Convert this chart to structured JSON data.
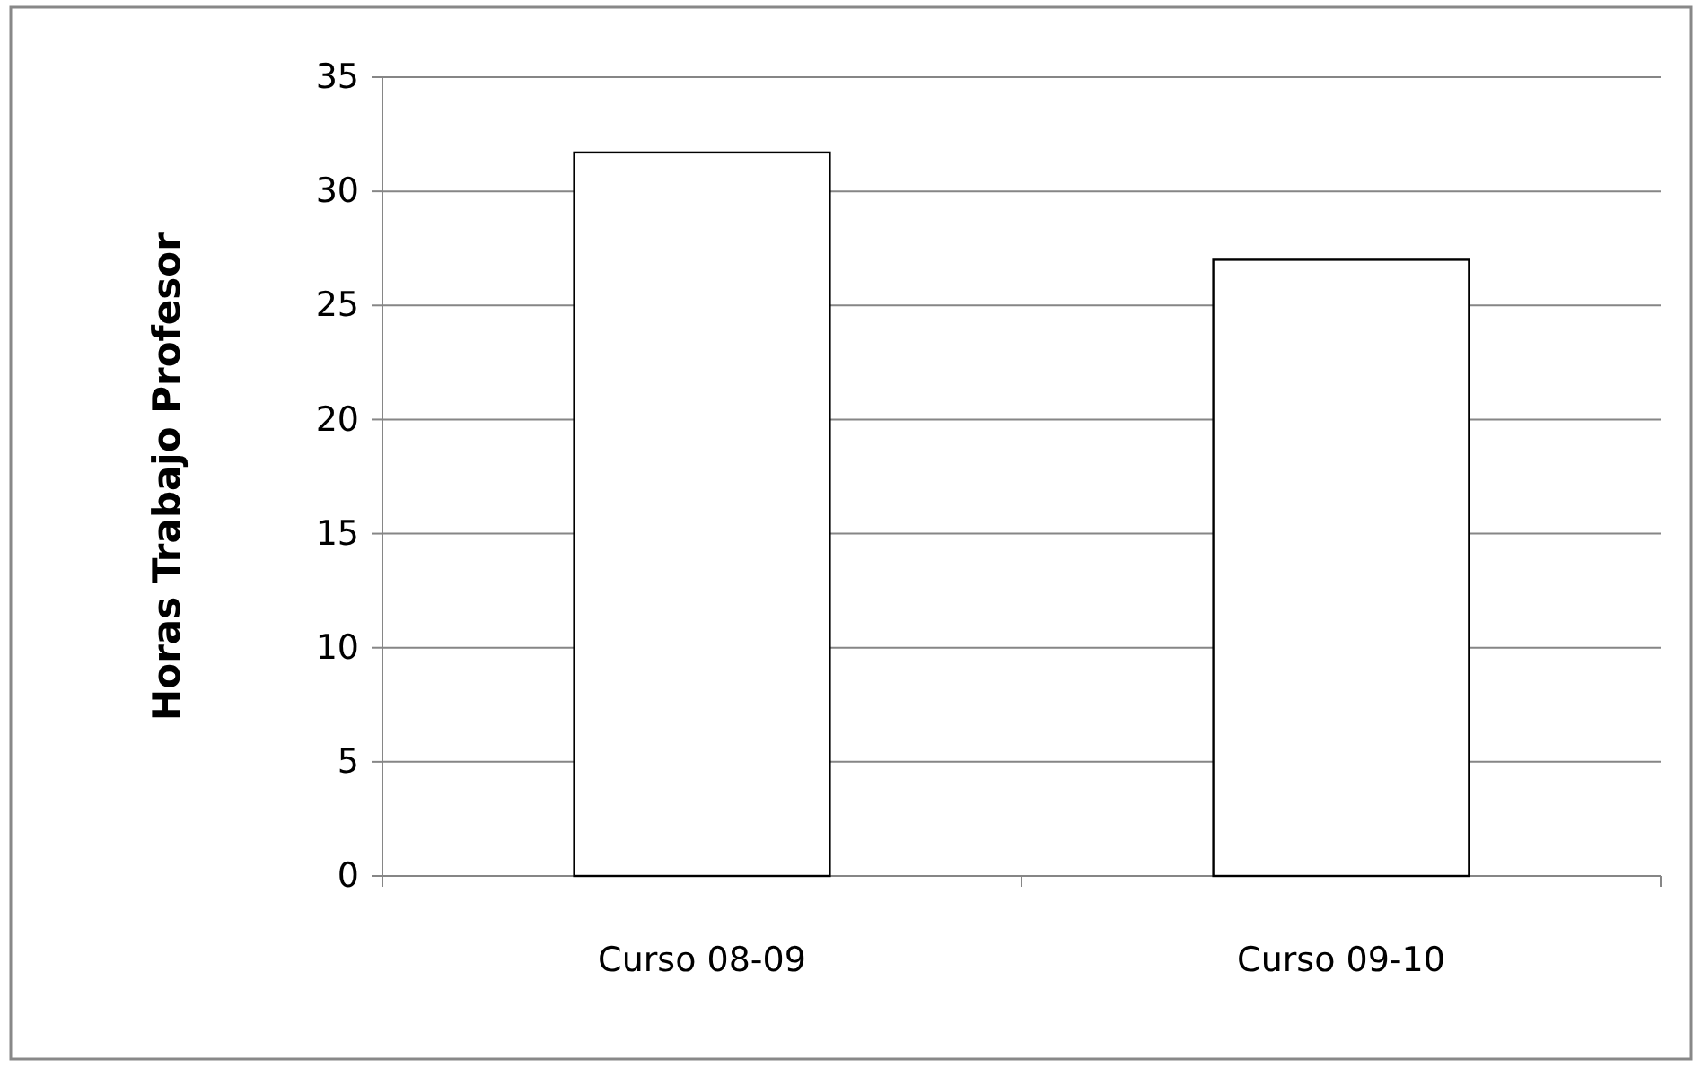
{
  "chart_data": {
    "type": "bar",
    "ylabel": "Horas Trabajo Profesor",
    "categories": [
      "Curso 08-09",
      "Curso 09-10"
    ],
    "values": [
      31.7,
      27.0
    ],
    "color": "#ffffff",
    "ylim": [
      0,
      35
    ],
    "yticks": [
      0,
      5,
      10,
      15,
      20,
      25,
      30,
      35
    ],
    "grid": "y"
  }
}
